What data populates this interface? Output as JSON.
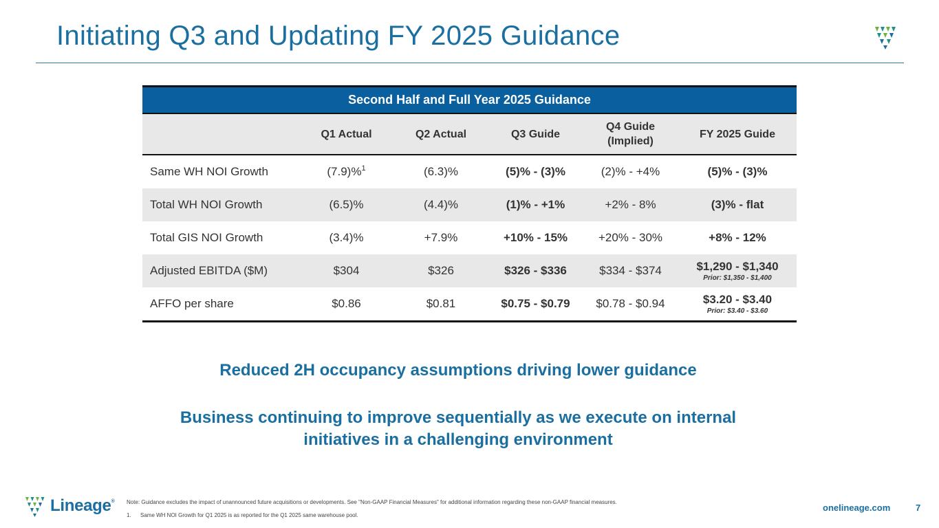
{
  "slide": {
    "title": "Initiating Q3 and Updating FY 2025 Guidance",
    "page_number": "7",
    "website": "onelineage.com"
  },
  "brand": {
    "logo_text": "Lineage",
    "logo_registered": "®",
    "primary_color": "#1b6fa0",
    "header_color": "#0a5f9e",
    "shield_green": "#6db33f",
    "shield_teal": "#1f8f8a",
    "shield_blue": "#1b6fa0"
  },
  "table": {
    "title": "Second Half and Full Year 2025 Guidance",
    "columns": [
      "",
      "Q1 Actual",
      "Q2 Actual",
      "Q3 Guide",
      "Q4 Guide",
      "FY 2025 Guide"
    ],
    "q4_sub": "(Implied)",
    "rows": [
      {
        "metric": "Same WH NOI Growth",
        "q1": "(7.9)%",
        "q1_sup": "1",
        "q2": "(6.3)%",
        "q3": "(5)% - (3)%",
        "q4": "(2)% - +4%",
        "fy": "(5)% - (3)%"
      },
      {
        "metric": "Total WH NOI Growth",
        "q1": "(6.5)%",
        "q2": "(4.4)%",
        "q3": "(1)% - +1%",
        "q4": "+2% - 8%",
        "fy": "(3)% - flat"
      },
      {
        "metric": "Total GIS NOI Growth",
        "q1": "(3.4)%",
        "q2": "+7.9%",
        "q3": "+10% - 15%",
        "q4": "+20% - 30%",
        "fy": "+8% - 12%"
      },
      {
        "metric": "Adjusted EBITDA ($M)",
        "q1": "$304",
        "q2": "$326",
        "q3": "$326 - $336",
        "q4": "$334 - $374",
        "fy": "$1,290 - $1,340",
        "fy_prior": "Prior: $1,350 - $1,400"
      },
      {
        "metric": "AFFO per share",
        "q1": "$0.86",
        "q2": "$0.81",
        "q3": "$0.75 - $0.79",
        "q4": "$0.78 - $0.94",
        "fy": "$3.20 - $3.40",
        "fy_prior": "Prior: $3.40 - $3.60"
      }
    ]
  },
  "messages": {
    "primary": "Reduced 2H occupancy assumptions driving lower guidance",
    "secondary_line1": "Business continuing to improve sequentially as we execute on internal",
    "secondary_line2": "initiatives in a challenging environment"
  },
  "footer": {
    "note": "Note: Guidance excludes the impact of unannounced future acquisitions or developments. See \"Non-GAAP Financial Measures\" for additional information regarding these non-GAAP financial measures.",
    "footnote_number": "1.",
    "footnote_text": "Same WH NOI Growth for Q1 2025 is as reported for the Q1 2025 same warehouse pool."
  }
}
